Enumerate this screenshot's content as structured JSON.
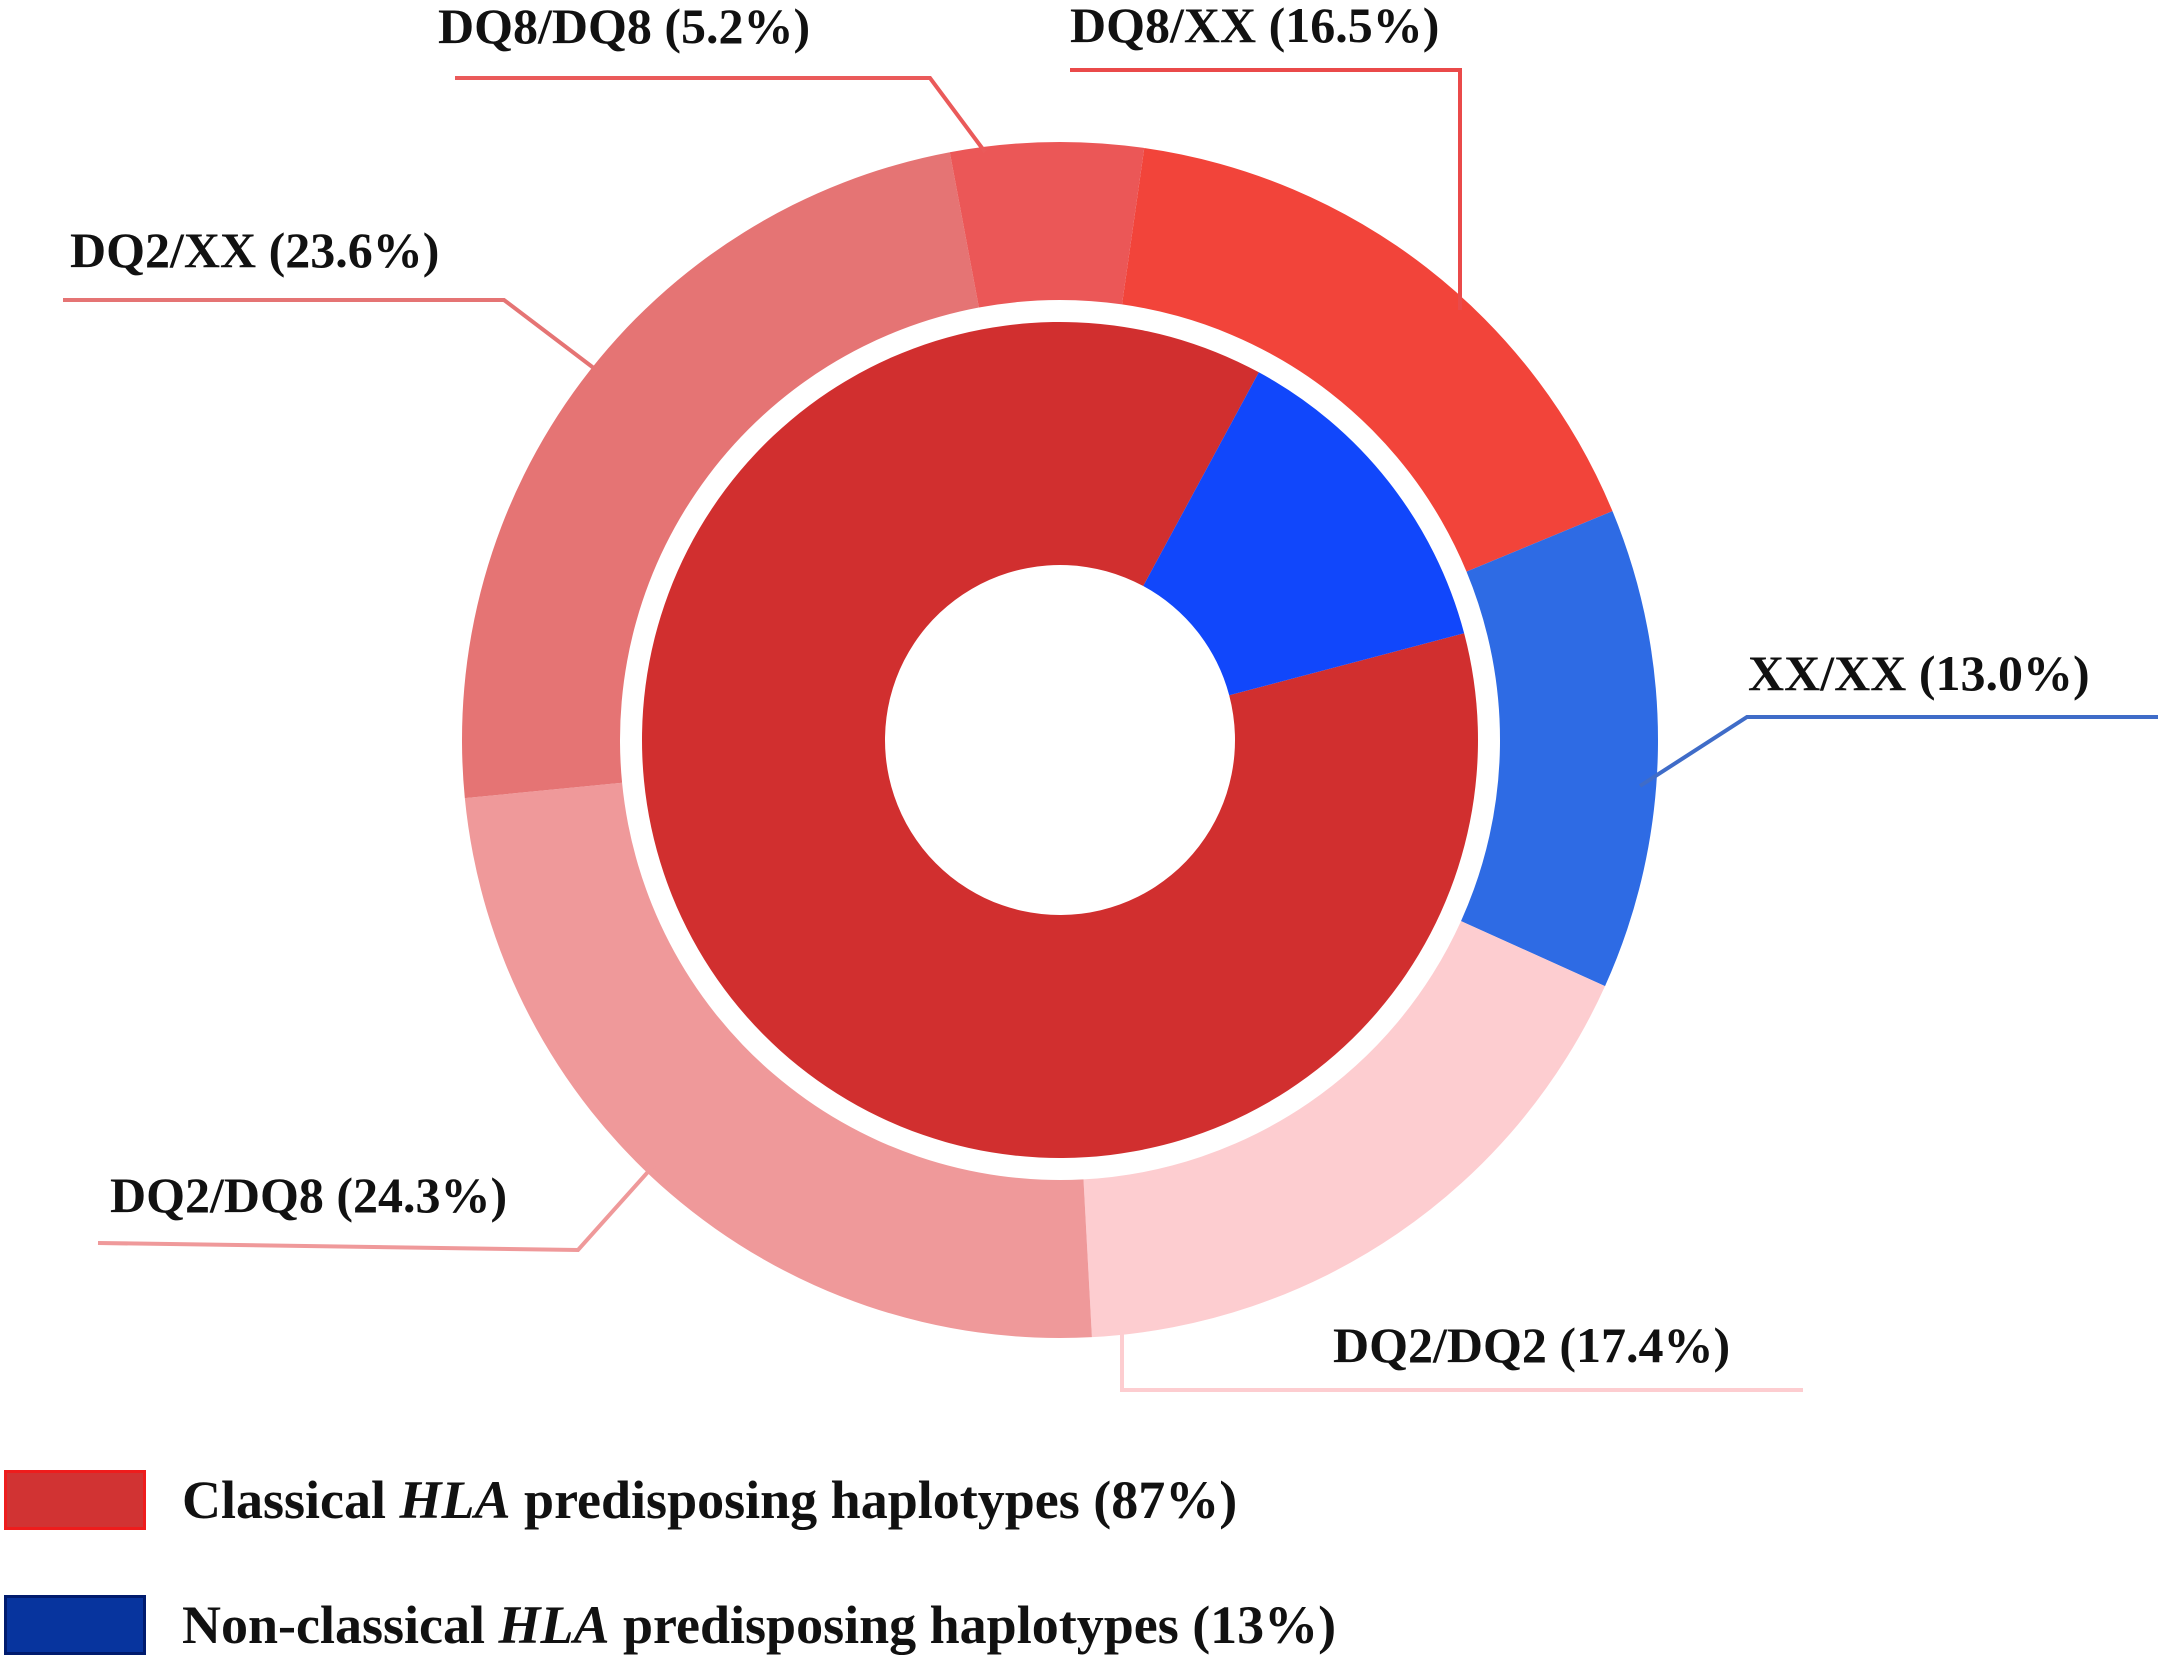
{
  "chart_data": {
    "type": "pie",
    "inner_ring": {
      "slices": [
        {
          "name": "Classical HLA predisposing haplotypes",
          "value": 87,
          "color": "#d12f2f"
        },
        {
          "name": "Non-classical HLA predisposing haplotypes",
          "value": 13,
          "color": "#1147fb"
        }
      ]
    },
    "outer_ring": {
      "slices": [
        {
          "label": "DQ8/XX (16.5%)",
          "value": 16.5,
          "color": "#f2443a"
        },
        {
          "label": "XX/XX (13.0%)",
          "value": 13.0,
          "color": "#2e6be4"
        },
        {
          "label": "DQ2/DQ2 (17.4%)",
          "value": 17.4,
          "color": "#fdcdd0"
        },
        {
          "label": "DQ2/DQ8 (24.3%)",
          "value": 24.3,
          "color": "#ef999a"
        },
        {
          "label": "DQ2/XX (23.6%)",
          "value": 23.6,
          "color": "#e57474"
        },
        {
          "label": "DQ8/DQ8 (5.2%)",
          "value": 5.2,
          "color": "#eb5757"
        }
      ]
    },
    "legend": [
      {
        "prefix": "Classical ",
        "italic": "HLA",
        "suffix": " predisposing haplotypes (87%)",
        "color": "#d13333",
        "border": "#ee1c1c"
      },
      {
        "prefix": "Non-classical ",
        "italic": "HLA",
        "suffix": " predisposing haplotypes (13%)",
        "color": "#07349e",
        "border": "#001b6e"
      }
    ]
  }
}
